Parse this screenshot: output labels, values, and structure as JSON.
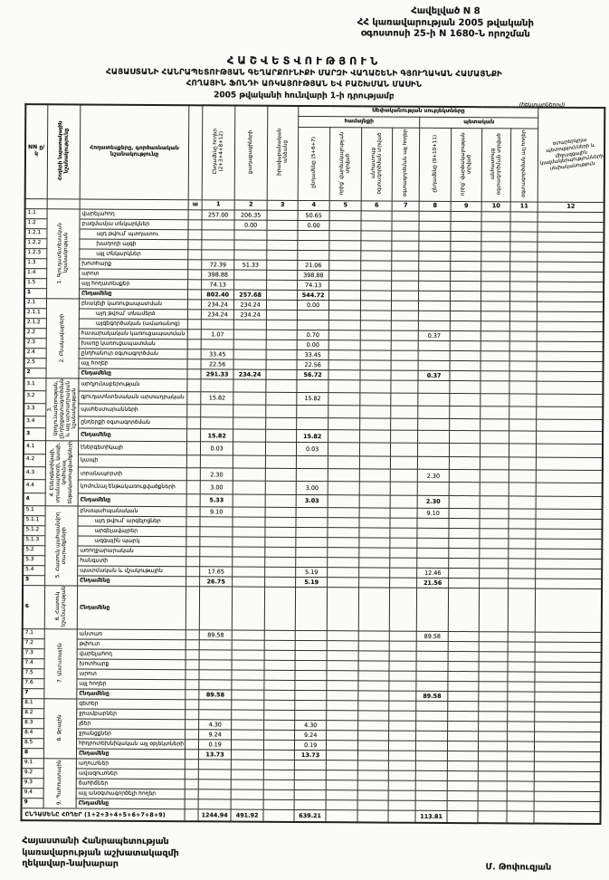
{
  "page": {
    "appendix": [
      "Հավելված N 8",
      "ՀՀ կառավարության 2005 թվականի",
      "օգոստոսի 25-ի N 1680-Ն որոշման"
    ],
    "title1": "ՀԱՇՎԵՏՎՈՒԹՅՈՒՆ",
    "title2": "ՀԱՅԱՍՏԱՆԻ ՀԱՆՐԱՊԵՏՈՒԹՅԱՆ ԳԵՂԱՐՔՈՒՆԻՔԻ ՄԱՐԶԻ ՎԱՂԱՇԵՆԻ ԳՅՈՒՂԱԿԱՆ ՀԱՄԱՅՆՔԻ",
    "title3": "ՀՈՂԱՅԻՆ ՖՈՆԴԻ ԱՌԿԱՅՈՒԹՅԱՆ ԵՎ ԲԱՇԽՄԱՆ ՄԱՍԻՆ",
    "title4": "2005 թվականի հունվարի 1-ի դրությամբ",
    "units_note": "(հեկտարներով)",
    "footer_left": [
      "Հայաստանի Հանրապետության",
      "կառավարության աշխատակազմի",
      "ղեկավար-նախարար"
    ],
    "footer_right": "Մ. Թոփուզյան"
  },
  "table": {
    "header": {
      "nn": "NN ը/կ",
      "purpose": "Հողերի նպատակային նշանակությունը",
      "landtype": "Հողատեսքերը, գործառնական նշանակությունը",
      "group": "Սեփականության սուբյեկտները",
      "group_community": "համայնքի",
      "group_state": "պետական",
      "c1": "Ընդամենը հողեր (2+3+4+8+12)",
      "c2": "քաղաքացիների",
      "c3": "իրավաբանական անձանց",
      "c4": "ընդամենը (5+6+7)",
      "c5": "որից՝ վարձակալության տրված",
      "c6": "անհատույց օգտագործման տրված",
      "c7": "օգտագործման այլ հողեր",
      "c8": "ընդամենը (9+10+11)",
      "c9": "որից՝ վարձակալության տրված",
      "c10": "անհատույց օգտագործման տրված",
      "c11": "օգտագործման այլ հողեր",
      "c12": "օտարերկրյա պետությունների և միջազգային կազմակերպությունների սեփականություն",
      "numbers": [
        "ա",
        "1",
        "2",
        "3",
        "4",
        "5",
        "6",
        "7",
        "8",
        "9",
        "10",
        "11",
        "12"
      ]
    },
    "sections": [
      {
        "id": "1",
        "category": "1. Գյուղատնտեսական նշանակության",
        "rows": [
          {
            "n": "1.1",
            "label": "վարելահող",
            "v": {
              "1": "257.00",
              "2": "206.35",
              "4": "50.65"
            }
          },
          {
            "n": "1.2",
            "label": "բազմամյա տնկարկներ",
            "v": {
              "2": "0.00",
              "4": "0.00"
            }
          },
          {
            "n": "1.2.1",
            "label": "այդ թվում՝ պտղատու",
            "ind": 1
          },
          {
            "n": "1.2.2",
            "label": "խաղողի այգի",
            "ind": 1
          },
          {
            "n": "1.2.3",
            "label": "այլ տնկարկներ",
            "ind": 1
          },
          {
            "n": "1.3",
            "label": "խոտհարք",
            "v": {
              "1": "72.39",
              "2": "51.33",
              "4": "21.06"
            }
          },
          {
            "n": "1.4",
            "label": "արոտ",
            "v": {
              "1": "398.88",
              "4": "398.88"
            }
          },
          {
            "n": "1.5",
            "label": "այլ հողատեսքեր",
            "v": {
              "1": "74.13",
              "4": "74.13"
            }
          },
          {
            "n": "1",
            "label": "Ընդամենը",
            "total": 1,
            "v": {
              "1": "802.40",
              "2": "257.68",
              "4": "544.72"
            }
          }
        ]
      },
      {
        "id": "2",
        "category": "2. Բնակավայրերի",
        "rows": [
          {
            "n": "2.1",
            "label": "բնակելի կառուցապատման",
            "v": {
              "1": "234.24",
              "2": "234.24",
              "4": "0.00"
            }
          },
          {
            "n": "2.1.1",
            "label": "այդ թվում՝ տնամերձ",
            "ind": 1,
            "v": {
              "1": "234.24",
              "2": "234.24"
            }
          },
          {
            "n": "2.1.2",
            "label": "այգեգործական (ամառանոց)",
            "ind": 1
          },
          {
            "n": "2.2",
            "label": "հասարակական կառուցապատման",
            "v": {
              "1": "1.07",
              "4": "0.70",
              "8": "0.37"
            }
          },
          {
            "n": "2.3",
            "label": "խառը կառուցապատման",
            "v": {
              "4": "0.00"
            }
          },
          {
            "n": "2.4",
            "label": "ընդհանուր օգտագործման",
            "v": {
              "1": "33.45",
              "4": "33.45"
            }
          },
          {
            "n": "2.5",
            "label": "այլ հողեր",
            "v": {
              "1": "22.56",
              "4": "22.56"
            }
          },
          {
            "n": "2",
            "label": "Ընդամենը",
            "total": 1,
            "v": {
              "1": "291.33",
              "2": "234.24",
              "4": "56.72",
              "8": "0.37"
            }
          }
        ]
      },
      {
        "id": "3",
        "category": "3. Արդյունաբերության, ընդերքօգտագործման և այլ արտադրական նշանակության",
        "rows": [
          {
            "n": "3.1",
            "label": "արդյունաբերության"
          },
          {
            "n": "3.2",
            "label": "գյուղատնտեսական արտադրական",
            "v": {
              "1": "15.82",
              "4": "15.82"
            }
          },
          {
            "n": "3.3",
            "label": "պահեստարանների"
          },
          {
            "n": "3.4",
            "label": "ընդերքի օգտագործման"
          },
          {
            "n": "3",
            "label": "Ընդամենը",
            "total": 1,
            "v": {
              "1": "15.82",
              "4": "15.82"
            }
          }
        ]
      },
      {
        "id": "4",
        "category": "4. Էներգետիկայի, տրանսպորտի, կապի, կոմունալ ենթակառուցվածքների",
        "rows": [
          {
            "n": "4.1",
            "label": "էներգետիկայի",
            "v": {
              "1": "0.03",
              "4": "0.03"
            }
          },
          {
            "n": "4.2",
            "label": "կապի"
          },
          {
            "n": "4.3",
            "label": "տրանսպորտի",
            "v": {
              "1": "2.30",
              "8": "2.30"
            }
          },
          {
            "n": "4.4",
            "label": "կոմունալ ենթակառուցվածքների",
            "v": {
              "1": "3.00",
              "4": "3.00"
            }
          },
          {
            "n": "4",
            "label": "Ընդամենը",
            "total": 1,
            "v": {
              "1": "5.33",
              "4": "3.03",
              "8": "2.30"
            }
          }
        ]
      },
      {
        "id": "5",
        "category": "5. Հատուկ պահպանվող տարածքների",
        "rows": [
          {
            "n": "5.1",
            "label": "բնապահպանական",
            "v": {
              "1": "9.10",
              "8": "9.10"
            }
          },
          {
            "n": "5.1.1",
            "label": "այդ թվում՝ արգելոցներ",
            "ind": 1
          },
          {
            "n": "5.1.2",
            "label": "արգելավայրեր",
            "ind": 1
          },
          {
            "n": "5.1.3",
            "label": "ազգային պարկ",
            "ind": 1
          },
          {
            "n": "5.2",
            "label": "առողջարարական"
          },
          {
            "n": "5.3",
            "label": "հանգստի"
          },
          {
            "n": "5.4",
            "label": "պատմական և մշակութային",
            "v": {
              "1": "17.65",
              "4": "5.19",
              "8": "12.46"
            }
          },
          {
            "n": "5",
            "label": "Ընդամենը",
            "total": 1,
            "v": {
              "1": "26.75",
              "4": "5.19",
              "8": "21.56"
            }
          }
        ]
      },
      {
        "id": "6",
        "category": "6. Հատուկ նշանակության",
        "rows": [
          {
            "n": "6",
            "label": "Ընդամենը",
            "total": 1,
            "tall": 1
          }
        ]
      },
      {
        "id": "7",
        "category": "7. Անտառային",
        "rows": [
          {
            "n": "7.1",
            "label": "անտառ",
            "v": {
              "1": "89.58",
              "8": "89.58"
            }
          },
          {
            "n": "7.2",
            "label": "թփուտ"
          },
          {
            "n": "7.3",
            "label": "վարելահող"
          },
          {
            "n": "7.4",
            "label": "խոտհարք"
          },
          {
            "n": "7.5",
            "label": "արոտ"
          },
          {
            "n": "7.6",
            "label": "այլ հողեր"
          },
          {
            "n": "7",
            "label": "Ընդամենը",
            "total": 1,
            "v": {
              "1": "89.58",
              "8": "89.58"
            }
          }
        ]
      },
      {
        "id": "8",
        "category": "8. Ջրային",
        "rows": [
          {
            "n": "8.1",
            "label": "գետեր"
          },
          {
            "n": "8.2",
            "label": "ջրամբարներ"
          },
          {
            "n": "8.3",
            "label": "լճեր",
            "v": {
              "1": "4.30",
              "4": "4.30"
            }
          },
          {
            "n": "8.4",
            "label": "ջրանցքներ",
            "v": {
              "1": "9.24",
              "4": "9.24"
            }
          },
          {
            "n": "8.5",
            "label": "հիդրոտեխնիկական այլ օբյեկտների",
            "v": {
              "1": "0.19",
              "4": "0.19"
            }
          },
          {
            "n": "8",
            "label": "Ընդամենը",
            "total": 1,
            "v": {
              "1": "13.73",
              "4": "13.73"
            }
          }
        ]
      },
      {
        "id": "9",
        "category": "9. Պահուստային",
        "rows": [
          {
            "n": "9.1",
            "label": "աղուտներ"
          },
          {
            "n": "9.2",
            "label": "ավազուտներ"
          },
          {
            "n": "9.3",
            "label": "ճահիճներ"
          },
          {
            "n": "9.4",
            "label": "այլ անօգտագործելի հողեր"
          },
          {
            "n": "9",
            "label": "Ընդամենը",
            "total": 1
          }
        ]
      }
    ],
    "grand_total": {
      "label": "ԸՆԴԱՄԵՆԸ ՀՈՂԵՐ (1+2+3+4+5+6+7+8+9)",
      "v": {
        "1": "1244.94",
        "2": "491.92",
        "4": "639.21",
        "8": "113.81"
      }
    }
  }
}
